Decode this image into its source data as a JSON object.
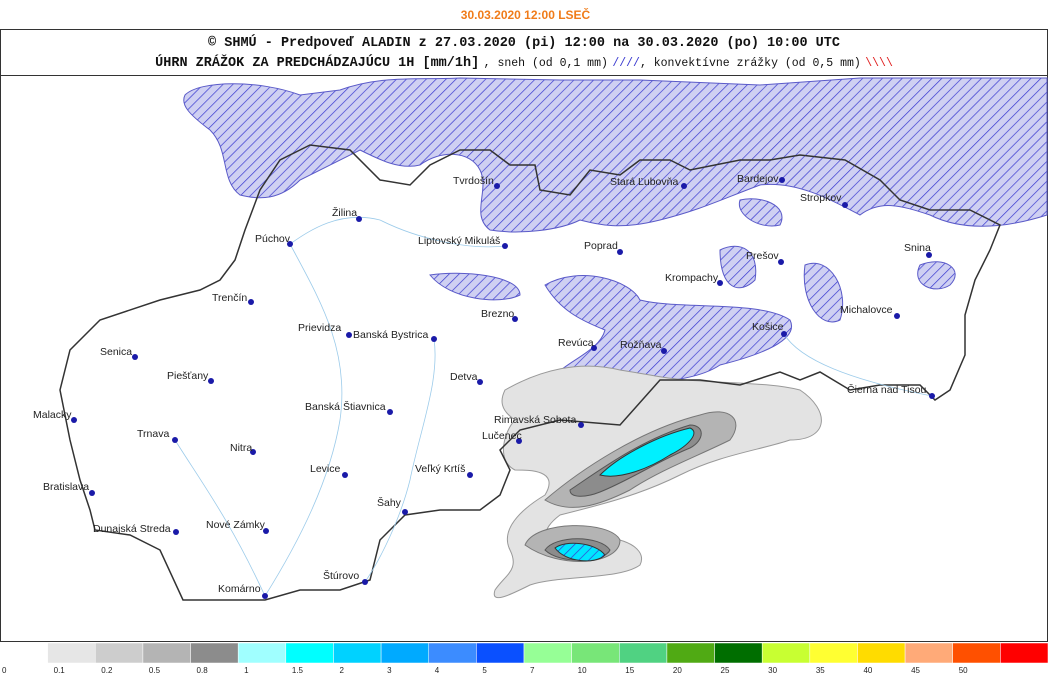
{
  "date": "30.03.2020 12:00 LSEČ",
  "header": {
    "line1": "© SHMÚ - Predpoveď ALADIN z 27.03.2020 (pi) 12:00 na 30.03.2020 (po) 10:00 UTC",
    "line2_title": "ÚHRN ZRÁŽOK ZA PREDCHÁDZAJÚCU 1H [mm/1h]",
    "line2_snow": ", sneh (od 0,1 mm)",
    "snow_symbol": "////",
    "line2_convective": ", konvektívne zrážky (od 0,5 mm)",
    "convective_symbol": "\\\\\\\\"
  },
  "cities": [
    "Tvrdošín",
    "Stará Ľubovňa",
    "Bardejov",
    "Stropkov",
    "Žilina",
    "Púchov",
    "Liptovský Mikuláš",
    "Poprad",
    "Snina",
    "Prešov",
    "Krompachy",
    "Trenčín",
    "Brezno",
    "Michalovce",
    "Košice",
    "Prievidza",
    "Banská Bystrica",
    "Revúca",
    "Rožňava",
    "Senica",
    "Piešťany",
    "Detva",
    "Čierna nad Tisou",
    "Malacky",
    "Banská Štiavnica",
    "Rimavská Sobota",
    "Trnava",
    "Lučenec",
    "Nitra",
    "Levice",
    "Veľký Krtíš",
    "Bratislava",
    "Šahy",
    "Nové Zámky",
    "Dunajská Streda",
    "Štúrovo",
    "Komárno"
  ],
  "legend": {
    "labels": [
      0,
      0.1,
      0.2,
      0.5,
      0.8,
      1,
      1.5,
      2,
      3,
      4,
      5,
      7,
      10,
      15,
      20,
      25,
      30,
      35,
      40,
      45,
      50
    ],
    "colors": [
      "#ffffff",
      "#e6e6e6",
      "#cdcdcd",
      "#b4b4b4",
      "#8c8c8c",
      "#a0ffff",
      "#00ffff",
      "#00d2ff",
      "#00aaff",
      "#3c8cff",
      "#0a50ff",
      "#96ff96",
      "#78e678",
      "#50d282",
      "#50aa14",
      "#006e00",
      "#c8ff32",
      "#ffff32",
      "#ffdc00",
      "#ffaa78",
      "#ff5000",
      "#ff0000"
    ]
  }
}
